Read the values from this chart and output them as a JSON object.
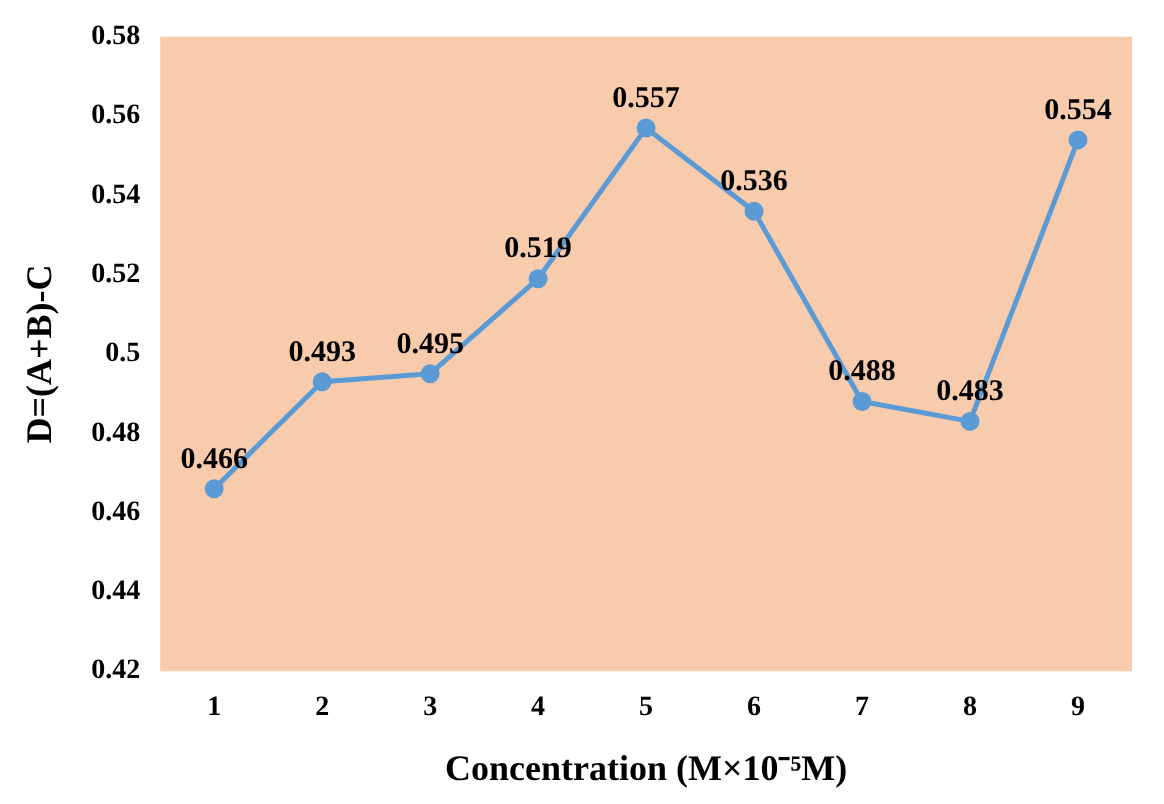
{
  "chart_data": {
    "type": "line",
    "xlabel": "Concentration (M×10⁻⁵M)",
    "ylabel": "D=(A+B)-C",
    "categories": [
      "1",
      "2",
      "3",
      "4",
      "5",
      "6",
      "7",
      "8",
      "9"
    ],
    "series": [
      {
        "color": "#5b9bd5",
        "values": [
          0.466,
          0.493,
          0.495,
          0.519,
          0.557,
          0.536,
          0.488,
          0.483,
          0.554
        ]
      }
    ],
    "ylim": [
      0.42,
      0.58
    ],
    "yticks": [
      0.42,
      0.44,
      0.46,
      0.48,
      0.5,
      0.52,
      0.54,
      0.56,
      0.58
    ],
    "grid": false,
    "legend": false,
    "marker": "circle",
    "line_style": "solid",
    "data_labels": true
  }
}
